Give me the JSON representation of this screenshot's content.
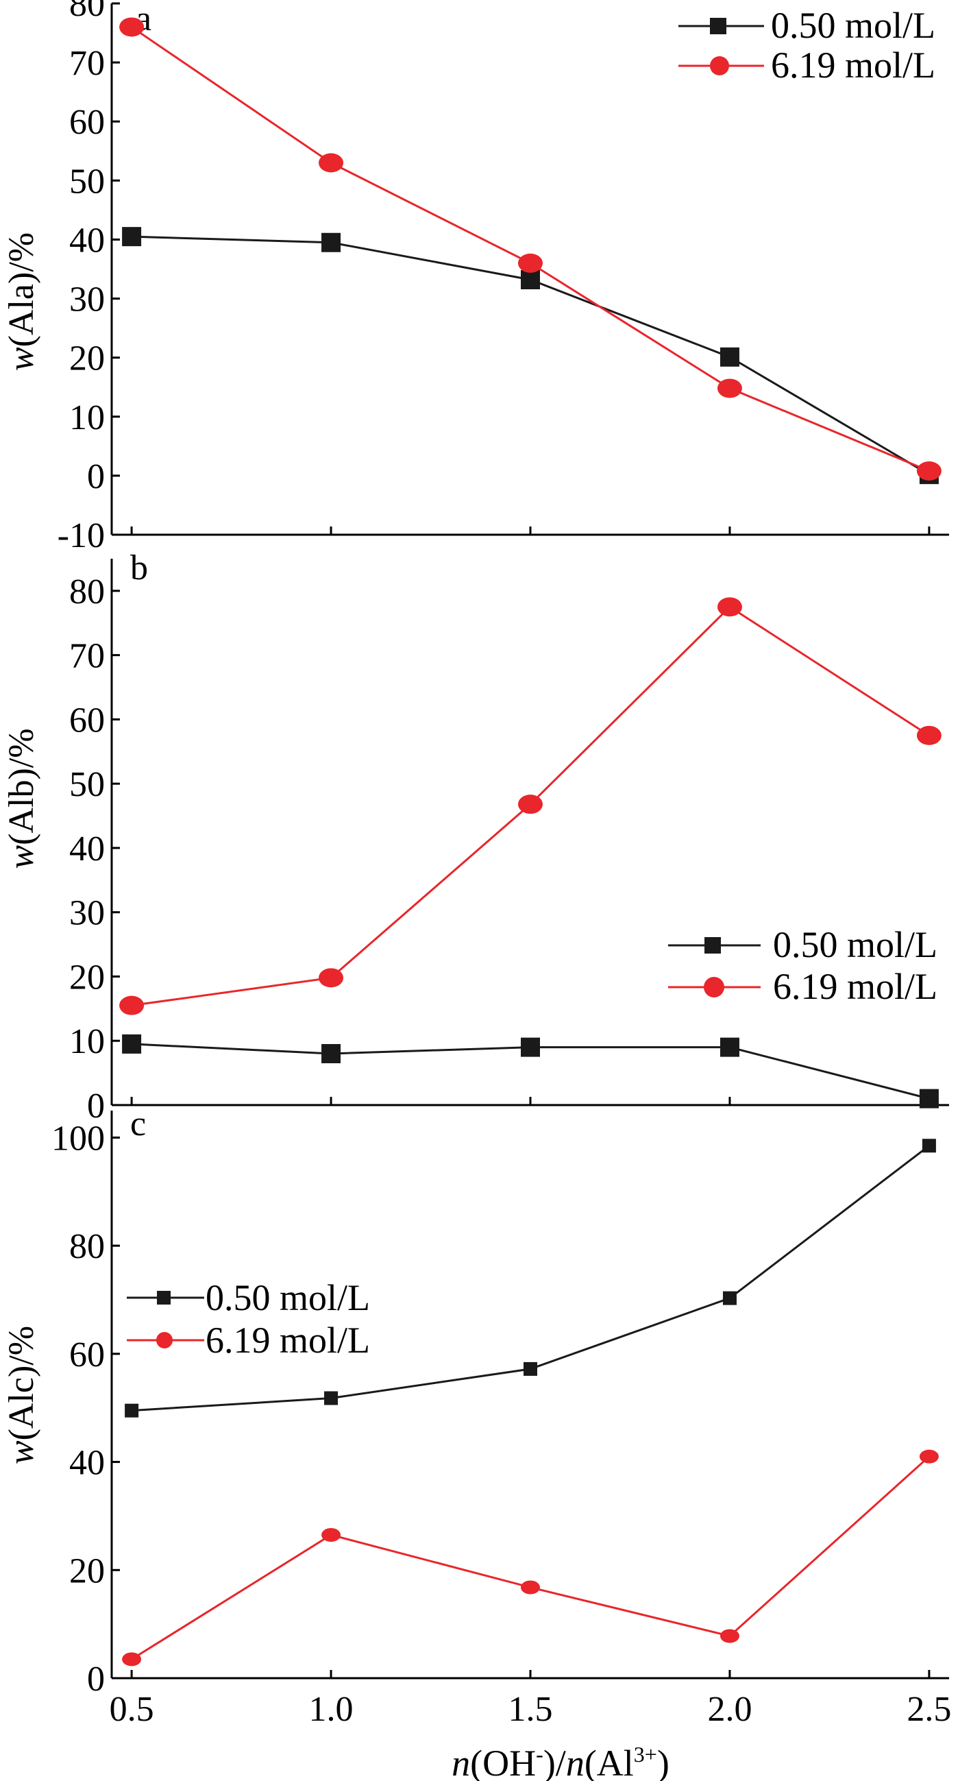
{
  "chart_data": [
    {
      "type": "line",
      "panel_label": "a",
      "title": "",
      "xlabel": "",
      "ylabel": "w(Ala)/%",
      "ylabel_italic": "w",
      "ylabel_rest": "(Ala)/%",
      "x": [
        0.5,
        1.0,
        1.5,
        2.0,
        2.5
      ],
      "xlim": [
        0.45,
        2.55
      ],
      "ylim": [
        -10,
        80
      ],
      "yticks": [
        -10,
        0,
        10,
        20,
        30,
        40,
        50,
        60,
        70,
        80
      ],
      "grid": false,
      "legend_position": "top-right",
      "series": [
        {
          "name": "0.50 mol/L",
          "color": "#1a1a1a",
          "marker": "square",
          "values": [
            40.5,
            39.5,
            33.2,
            20.1,
            0.2
          ]
        },
        {
          "name": "6.19 mol/L",
          "color": "#e8262b",
          "marker": "circle",
          "values": [
            76.0,
            53.0,
            36.0,
            14.8,
            0.8
          ]
        }
      ]
    },
    {
      "type": "line",
      "panel_label": "b",
      "title": "",
      "xlabel": "",
      "ylabel": "w(Alb)/%",
      "ylabel_italic": "w",
      "ylabel_rest": "(Alb)/%",
      "x": [
        0.5,
        1.0,
        1.5,
        2.0,
        2.5
      ],
      "xlim": [
        0.45,
        2.55
      ],
      "ylim": [
        0,
        85
      ],
      "yticks": [
        0,
        10,
        20,
        30,
        40,
        50,
        60,
        70,
        80
      ],
      "grid": false,
      "legend_position": "middle-right",
      "series": [
        {
          "name": "0.50 mol/L",
          "color": "#1a1a1a",
          "marker": "square",
          "values": [
            9.5,
            8.0,
            9.0,
            9.0,
            1.0
          ]
        },
        {
          "name": "6.19 mol/L",
          "color": "#e8262b",
          "marker": "circle",
          "values": [
            15.5,
            19.8,
            46.8,
            77.5,
            57.5
          ]
        }
      ]
    },
    {
      "type": "line",
      "panel_label": "c",
      "title": "",
      "xlabel": "n(OH-)/n(Al3+)",
      "xlabel_parts": [
        "n",
        "(OH",
        "-",
        ")/",
        "n",
        "(Al",
        "3+",
        ")"
      ],
      "ylabel": "w(Alc)/%",
      "ylabel_italic": "w",
      "ylabel_rest": "(Alc)/%",
      "x": [
        0.5,
        1.0,
        1.5,
        2.0,
        2.5
      ],
      "xticks": [
        "0.5",
        "1.0",
        "1.5",
        "2.0",
        "2.5"
      ],
      "xlim": [
        0.45,
        2.55
      ],
      "ylim": [
        0,
        105
      ],
      "yticks": [
        0,
        20,
        40,
        60,
        80,
        100
      ],
      "grid": false,
      "legend_position": "middle-left",
      "series": [
        {
          "name": "0.50 mol/L",
          "color": "#1a1a1a",
          "marker": "square",
          "values": [
            49.5,
            51.8,
            57.2,
            70.3,
            98.5
          ]
        },
        {
          "name": "6.19 mol/L",
          "color": "#e8262b",
          "marker": "circle",
          "values": [
            3.5,
            26.5,
            16.8,
            7.8,
            41.0
          ]
        }
      ]
    }
  ]
}
